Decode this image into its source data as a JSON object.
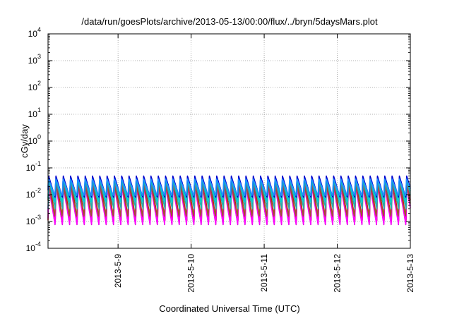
{
  "chart_data": {
    "type": "line",
    "title": "/data/run/goesPlots/archive/2013-05-13/00:00/flux/../bryn/5daysMars.plot",
    "xlabel": "Coordinated Universal Time (UTC)",
    "ylabel": "cGy/day",
    "yscale": "log",
    "ylim": [
      0.0001,
      10000
    ],
    "y_ticks": [
      {
        "value": 0.0001,
        "base": "10",
        "exp": "-4"
      },
      {
        "value": 0.001,
        "base": "10",
        "exp": "-3"
      },
      {
        "value": 0.01,
        "base": "10",
        "exp": "-2"
      },
      {
        "value": 0.1,
        "base": "10",
        "exp": "-1"
      },
      {
        "value": 1,
        "base": "10",
        "exp": "0"
      },
      {
        "value": 10,
        "base": "10",
        "exp": "1"
      },
      {
        "value": 100,
        "base": "10",
        "exp": "2"
      },
      {
        "value": 1000,
        "base": "10",
        "exp": "3"
      },
      {
        "value": 10000,
        "base": "10",
        "exp": "4"
      }
    ],
    "xlim": [
      "2013-05-08 01:00",
      "2013-05-13 00:00"
    ],
    "x_ticks": [
      {
        "value": "2013-05-09 00:00",
        "label": "2013-5-9"
      },
      {
        "value": "2013-05-10 00:00",
        "label": "2013-5-10"
      },
      {
        "value": "2013-05-11 00:00",
        "label": "2013-5-11"
      },
      {
        "value": "2013-05-12 00:00",
        "label": "2013-5-12"
      },
      {
        "value": "2013-05-13 00:00",
        "label": "2013-5-13"
      }
    ],
    "grid": true,
    "pattern": "sawtooth, about 10 cycles per day: sharp rise followed by gradual decay",
    "series": [
      {
        "color": "#dd0000",
        "peak": 0.045,
        "trough": 0.0011
      },
      {
        "color": "#cc00cc",
        "peak": 0.03,
        "trough": 0.0007
      },
      {
        "color": "#ff00ff",
        "peak": 0.02,
        "trough": 0.0008
      },
      {
        "color": "#a0522d",
        "peak": 0.025,
        "trough": 0.0015
      },
      {
        "color": "#20b2aa",
        "peak": 0.035,
        "trough": 0.003
      },
      {
        "color": "#00ced1",
        "peak": 0.045,
        "trough": 0.005
      },
      {
        "color": "#0000cd",
        "peak": 0.05,
        "trough": 0.008
      },
      {
        "color": "#1e90ff",
        "peak": 0.04,
        "trough": 0.009
      }
    ]
  }
}
